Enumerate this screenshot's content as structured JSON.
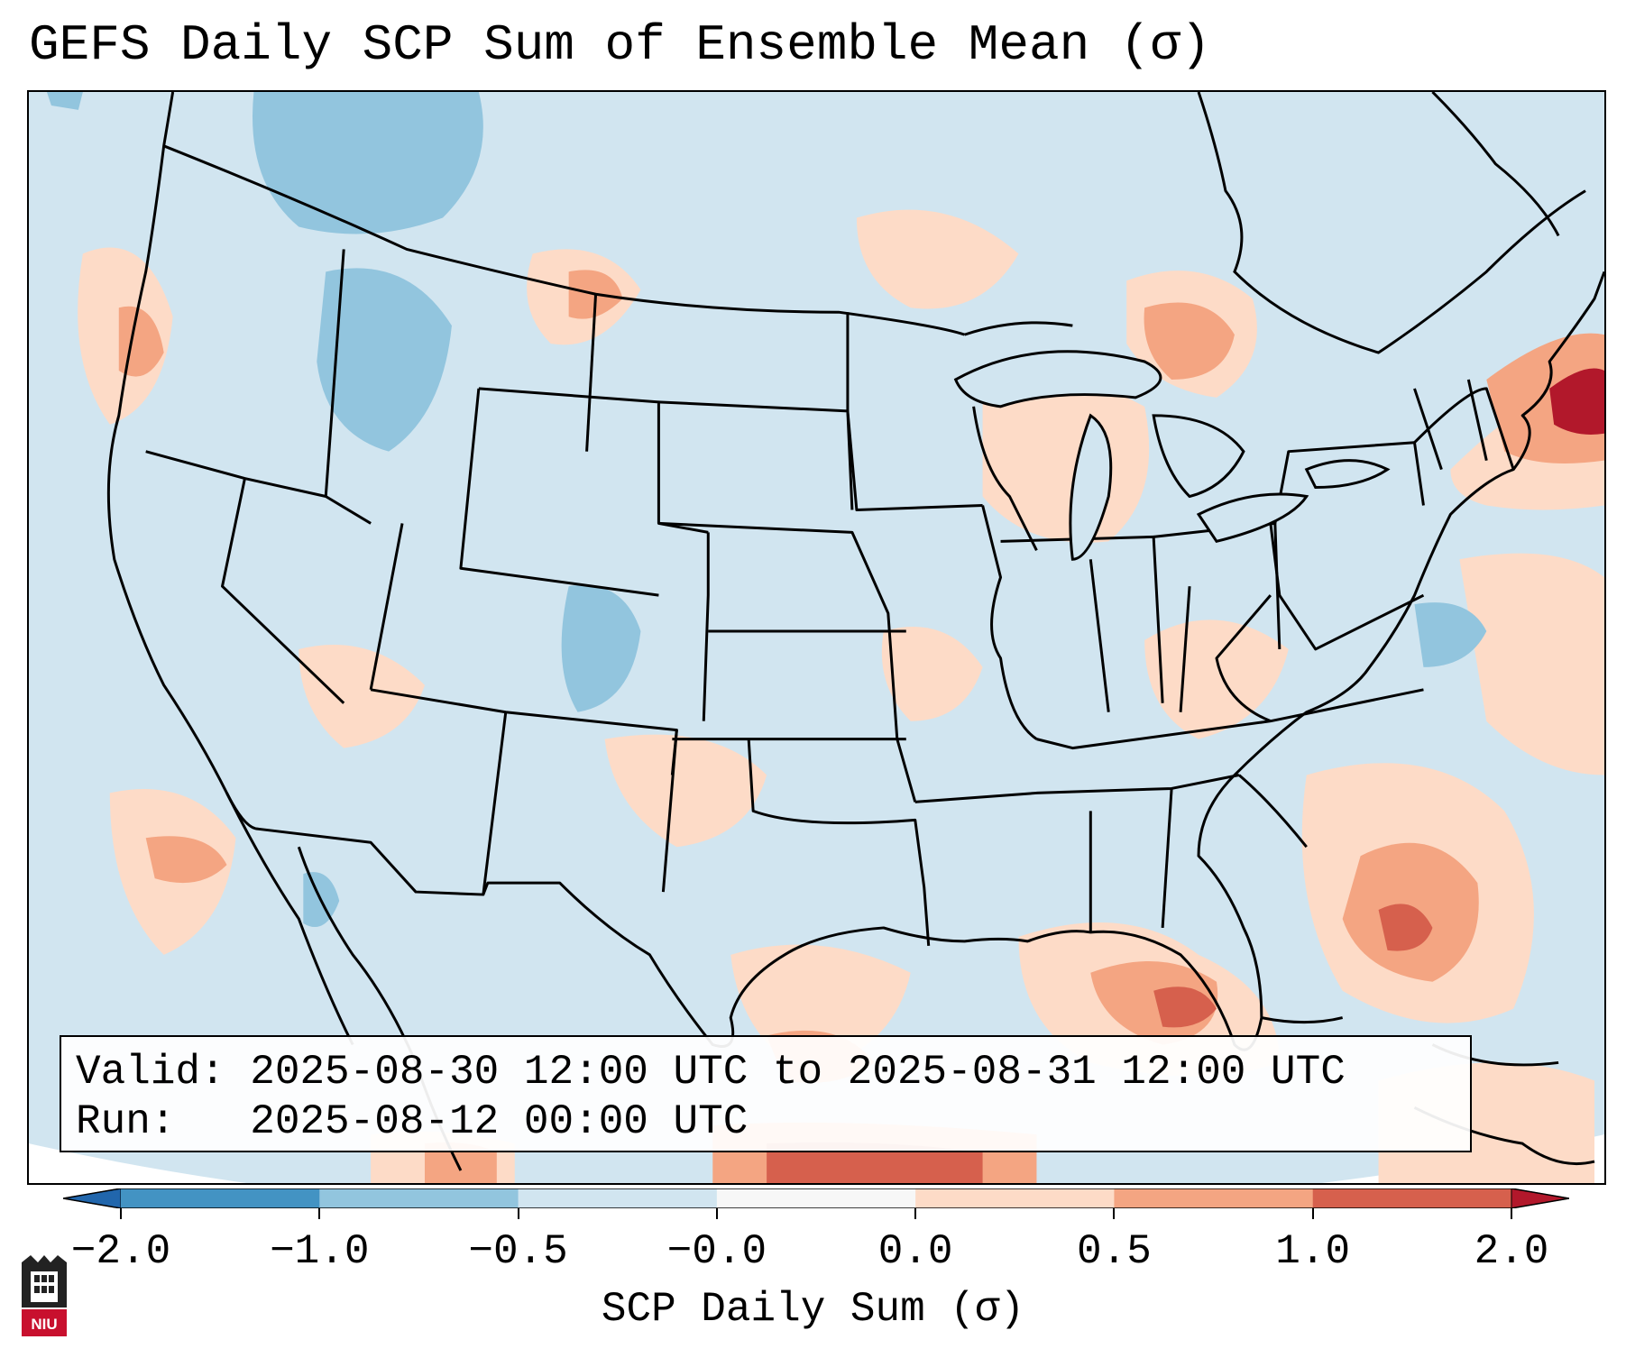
{
  "title": "GEFS Daily SCP Sum of Ensemble Mean (σ)",
  "info": {
    "valid": "Valid: 2025-08-30 12:00 UTC to 2025-08-31 12:00 UTC",
    "run": "Run:   2025-08-12 00:00 UTC"
  },
  "colorbar": {
    "label": "SCP Daily Sum (σ)",
    "ticks": [
      "−2.0",
      "−1.0",
      "−0.5",
      "−0.0",
      "0.0",
      "0.5",
      "1.0",
      "2.0"
    ],
    "colors": [
      "#2166ac",
      "#4393c3",
      "#92c5de",
      "#d1e5f0",
      "#f7f7f7",
      "#fddbc7",
      "#f4a582",
      "#d6604d",
      "#b2182b"
    ]
  },
  "logo": {
    "text": "NIU",
    "color": "#c8102e"
  }
}
